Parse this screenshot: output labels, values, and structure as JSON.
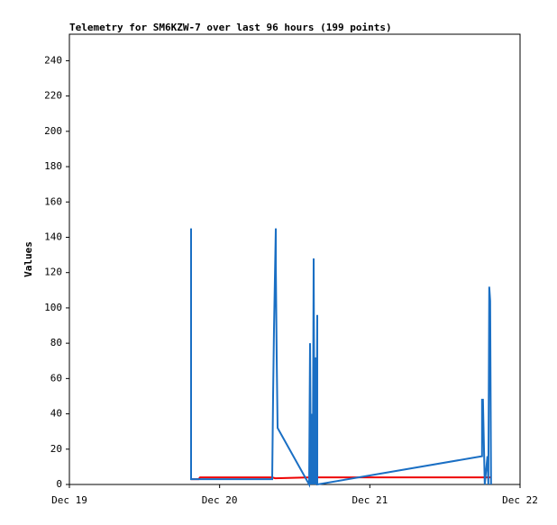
{
  "chart_data": {
    "type": "line",
    "title": "Telemetry for SM6KZW-7 over last 96 hours (199 points)",
    "y_label": "Values",
    "xlim": [
      0,
      3
    ],
    "ylim": [
      0,
      255
    ],
    "xticks": [
      {
        "value": 0,
        "label": "Dec 19"
      },
      {
        "value": 1,
        "label": "Dec 20"
      },
      {
        "value": 2,
        "label": "Dec 21"
      },
      {
        "value": 3,
        "label": "Dec 22"
      }
    ],
    "yticks": [
      0,
      20,
      40,
      60,
      80,
      100,
      120,
      140,
      160,
      180,
      200,
      220,
      240
    ],
    "series": [
      {
        "color": "#ee0000",
        "x": [
          0.81,
          0.86,
          0.87,
          1.35,
          1.37,
          1.6,
          2.0,
          2.5,
          2.81
        ],
        "values": [
          3,
          3,
          4,
          4,
          3.5,
          4,
          4,
          4,
          4
        ]
      },
      {
        "color": "#1a6fc4",
        "x": [
          0.81,
          0.81,
          1.35,
          1.356,
          1.362,
          1.374,
          1.374,
          1.38,
          1.386,
          1.596,
          1.602,
          1.608,
          1.614,
          1.62,
          1.626,
          1.632,
          1.638,
          1.644,
          1.65,
          1.65,
          2.747,
          2.747,
          2.753,
          2.765,
          2.783,
          2.789,
          2.795,
          2.801,
          2.807
        ],
        "values": [
          145,
          3,
          3,
          50,
          88,
          145,
          125,
          72,
          32,
          0,
          80,
          0,
          40,
          0,
          128,
          0,
          72,
          0,
          96,
          0,
          16,
          48,
          48,
          0,
          16,
          0,
          112,
          104,
          0
        ]
      }
    ]
  }
}
